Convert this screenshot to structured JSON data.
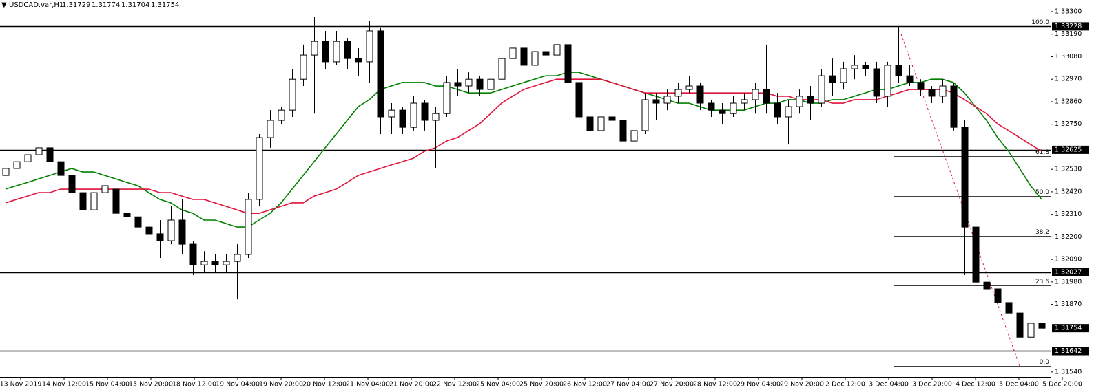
{
  "chart_data": {
    "type": "candlestick",
    "title": "USDCAD.var,H1",
    "header_ohlc": [
      1.31729,
      1.31774,
      1.31704,
      1.31754
    ],
    "x_labels": [
      "13 Nov 2019",
      "14 Nov 12:00",
      "15 Nov 04:00",
      "15 Nov 20:00",
      "18 Nov 12:00",
      "19 Nov 04:00",
      "19 Nov 20:00",
      "20 Nov 12:00",
      "21 Nov 04:00",
      "21 Nov 20:00",
      "22 Nov 12:00",
      "25 Nov 04:00",
      "25 Nov 20:00",
      "26 Nov 12:00",
      "27 Nov 04:00",
      "27 Nov 20:00",
      "28 Nov 12:00",
      "29 Nov 04:00",
      "29 Nov 20:00",
      "2 Dec 12:00",
      "3 Dec 04:00",
      "3 Dec 20:00",
      "4 Dec 12:00",
      "5 Dec 04:00",
      "5 Dec 20:00"
    ],
    "open": [
      1.325,
      1.32534,
      1.32567,
      1.32601,
      1.32635,
      1.32567,
      1.325,
      1.32416,
      1.32332,
      1.32416,
      1.32433,
      1.32315,
      1.32298,
      1.32248,
      1.32215,
      1.32181,
      1.32282,
      1.32164,
      1.32063,
      1.3208,
      1.32063,
      1.3208,
      1.32114,
      1.32383,
      1.32685,
      1.32769,
      1.32819,
      1.3297,
      1.33088,
      1.33155,
      1.33055,
      1.33155,
      1.33071,
      1.33055,
      1.33206,
      1.32786,
      1.32819,
      1.32735,
      1.32853,
      1.32769,
      1.32802,
      1.32954,
      1.32937,
      1.3297,
      1.3292,
      1.3297,
      1.33071,
      1.33122,
      1.33038,
      1.33105,
      1.33088,
      1.33139,
      1.32954,
      1.32786,
      1.32719,
      1.32786,
      1.32769,
      1.32668,
      1.32719,
      1.3287,
      1.32853,
      1.32887,
      1.3292,
      1.32937,
      1.32853,
      1.32819,
      1.32802,
      1.32853,
      1.3287,
      1.3292,
      1.32853,
      1.32786,
      1.32836,
      1.32887,
      1.32853,
      1.32987,
      1.32954,
      1.33021,
      1.33038,
      1.33021,
      1.32887,
      1.33038,
      1.32987,
      1.32954,
      1.3292,
      1.32887,
      1.32937,
      1.32735,
      1.32248,
      1.31979,
      1.31946,
      1.31879,
      1.31828,
      1.3171,
      1.31778
    ],
    "high": [
      1.32551,
      1.32601,
      1.32651,
      1.32668,
      1.32685,
      1.32601,
      1.32534,
      1.3245,
      1.32466,
      1.325,
      1.3245,
      1.32366,
      1.32349,
      1.32298,
      1.32282,
      1.32349,
      1.32383,
      1.32181,
      1.3213,
      1.32114,
      1.32114,
      1.32164,
      1.32416,
      1.32702,
      1.32819,
      1.32836,
      1.33021,
      1.33139,
      1.33273,
      1.33206,
      1.33206,
      1.33172,
      1.33122,
      1.33256,
      1.33223,
      1.32853,
      1.32836,
      1.32887,
      1.3287,
      1.32836,
      1.32987,
      1.33021,
      1.33004,
      1.32987,
      1.32987,
      1.33155,
      1.33206,
      1.33139,
      1.33122,
      1.33122,
      1.33155,
      1.33155,
      1.32987,
      1.32802,
      1.32819,
      1.32836,
      1.32786,
      1.32752,
      1.32903,
      1.32903,
      1.3292,
      1.32954,
      1.32987,
      1.32954,
      1.3287,
      1.32853,
      1.32887,
      1.32903,
      1.32954,
      1.33139,
      1.32903,
      1.3287,
      1.3292,
      1.32937,
      1.33021,
      1.33071,
      1.33055,
      1.33088,
      1.33055,
      1.33055,
      1.33055,
      1.33228,
      1.33038,
      1.3297,
      1.32937,
      1.3297,
      1.32954,
      1.32769,
      1.32282,
      1.32013,
      1.31963,
      1.31912,
      1.31862,
      1.31862,
      1.31794
    ],
    "low": [
      1.32483,
      1.32517,
      1.32551,
      1.32584,
      1.32551,
      1.32466,
      1.32383,
      1.32282,
      1.32315,
      1.32349,
      1.32265,
      1.32265,
      1.32215,
      1.32181,
      1.32097,
      1.32164,
      1.32114,
      1.32013,
      1.3203,
      1.3203,
      1.3203,
      1.31895,
      1.32097,
      1.32349,
      1.32635,
      1.32752,
      1.32786,
      1.32937,
      1.32802,
      1.33021,
      1.33038,
      1.33021,
      1.32987,
      1.32954,
      1.32702,
      1.32702,
      1.32702,
      1.32719,
      1.32719,
      1.32534,
      1.32786,
      1.32887,
      1.32903,
      1.32887,
      1.32853,
      1.32937,
      1.33021,
      1.3297,
      1.33021,
      1.33055,
      1.33071,
      1.3292,
      1.32735,
      1.32685,
      1.32702,
      1.32735,
      1.32635,
      1.32601,
      1.32702,
      1.32769,
      1.32819,
      1.32853,
      1.32903,
      1.32819,
      1.32786,
      1.32752,
      1.32786,
      1.32819,
      1.32802,
      1.32802,
      1.32752,
      1.32651,
      1.32802,
      1.32769,
      1.32836,
      1.32887,
      1.3292,
      1.3297,
      1.32987,
      1.32853,
      1.32836,
      1.32954,
      1.32937,
      1.32887,
      1.32853,
      1.32853,
      1.32719,
      1.32013,
      1.31912,
      1.31912,
      1.31811,
      1.31794,
      1.3157,
      1.31677,
      1.31704
    ],
    "close": [
      1.32534,
      1.32567,
      1.32601,
      1.32635,
      1.32567,
      1.325,
      1.32416,
      1.32332,
      1.32416,
      1.3245,
      1.32315,
      1.32298,
      1.32248,
      1.32215,
      1.32181,
      1.32282,
      1.32164,
      1.32063,
      1.3208,
      1.32063,
      1.3208,
      1.32114,
      1.32383,
      1.32685,
      1.32769,
      1.32819,
      1.3297,
      1.33088,
      1.33155,
      1.33055,
      1.33155,
      1.33071,
      1.33055,
      1.33206,
      1.32786,
      1.32819,
      1.32735,
      1.32853,
      1.32769,
      1.32802,
      1.32954,
      1.32937,
      1.3297,
      1.3292,
      1.3297,
      1.33071,
      1.33122,
      1.33038,
      1.33105,
      1.33088,
      1.33139,
      1.32954,
      1.32786,
      1.32719,
      1.32786,
      1.32769,
      1.32668,
      1.32719,
      1.3287,
      1.32853,
      1.32887,
      1.3292,
      1.32937,
      1.32853,
      1.32819,
      1.32802,
      1.32853,
      1.3287,
      1.3292,
      1.32853,
      1.32786,
      1.32836,
      1.32887,
      1.32853,
      1.32987,
      1.32954,
      1.33021,
      1.33038,
      1.33021,
      1.32887,
      1.33038,
      1.32987,
      1.32954,
      1.3292,
      1.32887,
      1.32937,
      1.32735,
      1.32248,
      1.31979,
      1.31946,
      1.31879,
      1.31828,
      1.3171,
      1.31778,
      1.31754
    ],
    "up_color": "#ffffff",
    "down_color": "#000000",
    "moving_averages": [
      {
        "color": "#008000",
        "values": [
          1.32433,
          1.3245,
          1.32466,
          1.32483,
          1.325,
          1.32517,
          1.32534,
          1.32517,
          1.32517,
          1.325,
          1.32483,
          1.32466,
          1.3245,
          1.32416,
          1.32383,
          1.32366,
          1.32332,
          1.32315,
          1.32282,
          1.32282,
          1.32265,
          1.32248,
          1.32248,
          1.32282,
          1.32315,
          1.32366,
          1.32433,
          1.325,
          1.32567,
          1.32635,
          1.32702,
          1.32769,
          1.32836,
          1.3287,
          1.3292,
          1.32937,
          1.32954,
          1.32954,
          1.32954,
          1.32937,
          1.32937,
          1.3292,
          1.32903,
          1.32903,
          1.32903,
          1.3292,
          1.32937,
          1.32954,
          1.3297,
          1.32987,
          1.32987,
          1.33004,
          1.33004,
          1.32987,
          1.3297,
          1.32954,
          1.32937,
          1.3292,
          1.32903,
          1.32887,
          1.3287,
          1.32853,
          1.32853,
          1.32836,
          1.32819,
          1.32819,
          1.32819,
          1.32819,
          1.32836,
          1.32853,
          1.32853,
          1.3287,
          1.3287,
          1.32853,
          1.32853,
          1.3287,
          1.3287,
          1.32887,
          1.32903,
          1.3292,
          1.3292,
          1.32937,
          1.32954,
          1.32954,
          1.3297,
          1.3297,
          1.32954,
          1.32903,
          1.32836,
          1.32769,
          1.32685,
          1.32618,
          1.32534,
          1.3245,
          1.32383
        ]
      },
      {
        "color": "#e0143c",
        "values": [
          1.32366,
          1.32383,
          1.32399,
          1.32416,
          1.32416,
          1.32433,
          1.32433,
          1.32433,
          1.32433,
          1.32433,
          1.32433,
          1.32433,
          1.32433,
          1.32433,
          1.32416,
          1.32416,
          1.32399,
          1.32383,
          1.32383,
          1.32366,
          1.32349,
          1.32332,
          1.32315,
          1.32315,
          1.32332,
          1.32349,
          1.32366,
          1.32366,
          1.32399,
          1.32416,
          1.32433,
          1.32466,
          1.325,
          1.32517,
          1.32534,
          1.32551,
          1.32567,
          1.32584,
          1.32618,
          1.32635,
          1.32668,
          1.32685,
          1.32719,
          1.32752,
          1.32802,
          1.32853,
          1.32887,
          1.3292,
          1.32937,
          1.32954,
          1.3297,
          1.3297,
          1.3297,
          1.3297,
          1.3297,
          1.32954,
          1.32937,
          1.3292,
          1.32903,
          1.32903,
          1.32903,
          1.32903,
          1.32903,
          1.32903,
          1.32903,
          1.32903,
          1.32903,
          1.32903,
          1.32903,
          1.32903,
          1.32887,
          1.32887,
          1.3287,
          1.3287,
          1.3287,
          1.32853,
          1.32853,
          1.3287,
          1.3287,
          1.3287,
          1.32887,
          1.32903,
          1.3292,
          1.3292,
          1.3292,
          1.3292,
          1.32903,
          1.3287,
          1.32836,
          1.32802,
          1.32752,
          1.32719,
          1.32685,
          1.32651,
          1.32618
        ]
      }
    ],
    "ylim": [
      1.31516,
      1.33357
    ],
    "yticks": [
      {
        "value": 1.333,
        "label": "1.33300"
      },
      {
        "value": 1.3319,
        "label": "1.33190"
      },
      {
        "value": 1.3308,
        "label": "1.33080"
      },
      {
        "value": 1.3297,
        "label": "1.32970"
      },
      {
        "value": 1.3286,
        "label": "1.32860"
      },
      {
        "value": 1.3275,
        "label": "1.32750"
      },
      {
        "value": 1.3253,
        "label": "1.32530"
      },
      {
        "value": 1.3242,
        "label": "1.32420"
      },
      {
        "value": 1.3231,
        "label": "1.32310"
      },
      {
        "value": 1.322,
        "label": "1.32200"
      },
      {
        "value": 1.3209,
        "label": "1.32090"
      },
      {
        "value": 1.3198,
        "label": "1.31980"
      },
      {
        "value": 1.3187,
        "label": "1.31870"
      },
      {
        "value": 1.3154,
        "label": "1.31540"
      }
    ],
    "levels": [
      1.33228,
      1.32625,
      1.32027,
      1.31642
    ],
    "current_price": 1.31754,
    "fib": {
      "high": 1.33228,
      "low": 1.3157,
      "color": "#e0143c",
      "levels": [
        {
          "value": 100,
          "label": "100.0"
        },
        61.8,
        {
          "value": 50,
          "label": "50.0"
        },
        38.2,
        23.6,
        {
          "value": 0,
          "label": "0.0"
        }
      ]
    }
  }
}
